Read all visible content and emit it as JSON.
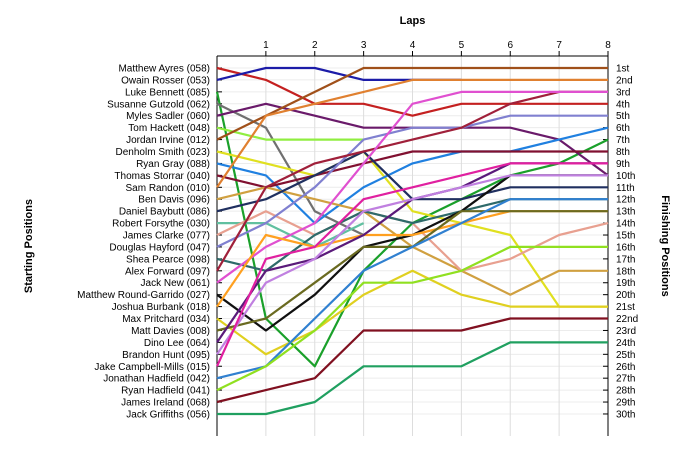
{
  "chart_data": {
    "type": "line",
    "title": "",
    "xlabel": "Laps",
    "ylabel_left": "Starting Positions",
    "ylabel_right": "Finishing Positions",
    "laps": [
      "1",
      "2",
      "3",
      "4",
      "5",
      "6",
      "7",
      "8"
    ],
    "position_labels": [
      "1st",
      "2nd",
      "3rd",
      "4th",
      "5th",
      "6th",
      "7th",
      "8th",
      "9th",
      "10th",
      "11th",
      "12th",
      "13th",
      "14th",
      "15th",
      "16th",
      "17th",
      "18th",
      "19th",
      "20th",
      "21st",
      "22nd",
      "23rd",
      "24th",
      "25th",
      "26th",
      "27th",
      "28th",
      "29th",
      "30th"
    ],
    "series": [
      {
        "name": "Matthew Ayres (058)",
        "color": "#c42020",
        "values": [
          1,
          2,
          4,
          4,
          5,
          4,
          4,
          4,
          4
        ]
      },
      {
        "name": "Owain Rosser (053)",
        "color": "#1c1ca8",
        "values": [
          2,
          1,
          1,
          2,
          2,
          2
        ]
      },
      {
        "name": "Luke Bennett (085)",
        "color": "#1aa02a",
        "values": [
          3,
          22,
          26,
          18,
          14,
          12,
          10,
          9,
          7
        ]
      },
      {
        "name": "Susanne Gutzold (062)",
        "color": "#707070",
        "values": [
          4,
          6,
          13,
          15
        ]
      },
      {
        "name": "Myles Sadler (060)",
        "color": "#6a1a6a",
        "values": [
          5,
          4,
          5,
          6,
          6,
          6,
          6,
          7,
          10
        ]
      },
      {
        "name": "Tom Hackett (048)",
        "color": "#90ee40",
        "values": [
          6,
          7,
          7,
          7
        ]
      },
      {
        "name": "Jordan Irvine (012)",
        "color": "#a0501a",
        "values": [
          7,
          5,
          3,
          1,
          1,
          1,
          1,
          1,
          1
        ]
      },
      {
        "name": "Denholm Smith (023)",
        "color": "#e0e020",
        "values": [
          8,
          9,
          10,
          8,
          13,
          14,
          15,
          21,
          21
        ]
      },
      {
        "name": "Ryan Gray (088)",
        "color": "#2080e0",
        "values": [
          9,
          10,
          14,
          11,
          9,
          8,
          8,
          7,
          6
        ]
      },
      {
        "name": "Thomas Storrar (040)",
        "color": "#801030",
        "values": [
          10,
          11,
          10,
          9,
          8,
          8,
          8,
          8,
          8
        ]
      },
      {
        "name": "Sam Randon (010)",
        "color": "#e08030",
        "values": [
          11,
          5,
          4,
          3,
          2,
          2,
          2,
          2,
          2
        ]
      },
      {
        "name": "Ben Davis (096)",
        "color": "#d0a040",
        "values": [
          12,
          11,
          12,
          13,
          16,
          18,
          20,
          18,
          18
        ]
      },
      {
        "name": "Daniel Baybutt (086)",
        "color": "#203060",
        "values": [
          13,
          12,
          10,
          8,
          12,
          12,
          11,
          11,
          11
        ]
      },
      {
        "name": "Robert Forsythe (030)",
        "color": "#60c0a0",
        "values": [
          14,
          14,
          16,
          14
        ]
      },
      {
        "name": "James Clarke (077)",
        "color": "#e8a090",
        "values": [
          15,
          13,
          15,
          13,
          14,
          18,
          17,
          15,
          14
        ]
      },
      {
        "name": "Douglas Hayford (047)",
        "color": "#8080d0",
        "values": [
          16,
          14,
          11,
          7,
          6,
          6,
          5,
          5,
          5
        ]
      },
      {
        "name": "Shea Pearce (098)",
        "color": "#2e6a6a",
        "values": [
          17,
          18,
          15,
          13,
          14,
          13,
          12,
          12,
          12
        ]
      },
      {
        "name": "Alex Forward (097)",
        "color": "#a0203a",
        "values": [
          18,
          11,
          9,
          8,
          7,
          6,
          4,
          3,
          3
        ]
      },
      {
        "name": "Jack New (061)",
        "color": "#e050d0",
        "values": [
          19,
          16,
          14,
          9,
          4,
          3,
          3,
          3,
          3
        ]
      },
      {
        "name": "Matthew Round-Garrido (027)",
        "color": "#101010",
        "values": [
          20,
          23,
          20,
          16,
          15,
          13,
          10,
          10,
          10
        ]
      },
      {
        "name": "Joshua Burbank (018)",
        "color": "#ffa020",
        "values": [
          21,
          15,
          16,
          15,
          15,
          14,
          13,
          13,
          13
        ]
      },
      {
        "name": "Max Pritchard (034)",
        "color": "#e0d020",
        "values": [
          22,
          25,
          23,
          20,
          18,
          20,
          21,
          21,
          21
        ]
      },
      {
        "name": "Matt Davies (008)",
        "color": "#6a6a20",
        "values": [
          23,
          22,
          19,
          16,
          16,
          13,
          13,
          13,
          13
        ]
      },
      {
        "name": "Dino Lee (064)",
        "color": "#5a1a7a",
        "values": [
          24,
          18,
          17,
          15,
          12,
          11,
          9,
          9,
          9
        ]
      },
      {
        "name": "Brandon Hunt (095)",
        "color": "#c080e0",
        "values": [
          25,
          19,
          17,
          13,
          12,
          11,
          10,
          10,
          10
        ]
      },
      {
        "name": "Jake Campbell-Mills (015)",
        "color": "#e020a0",
        "values": [
          26,
          17,
          16,
          12,
          11,
          10,
          9,
          9,
          9
        ]
      },
      {
        "name": "Jonathan Hadfield (042)",
        "color": "#3080d0",
        "values": [
          27,
          26,
          22,
          18,
          16,
          14,
          12,
          12,
          12
        ]
      },
      {
        "name": "Ryan Hadfield (041)",
        "color": "#90e020",
        "values": [
          28,
          26,
          23,
          19,
          19,
          18,
          16,
          16,
          16
        ]
      },
      {
        "name": "James Ireland (068)",
        "color": "#801020",
        "values": [
          29,
          28,
          27,
          23,
          23,
          23,
          22,
          22,
          22
        ]
      },
      {
        "name": "Jack Griffiths (056)",
        "color": "#20a060",
        "values": [
          30,
          30,
          29,
          26,
          26,
          26,
          24,
          24,
          24
        ]
      }
    ]
  }
}
